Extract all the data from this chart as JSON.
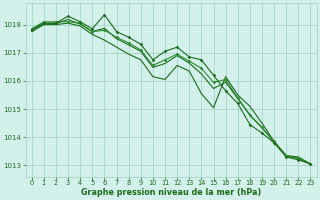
{
  "x": [
    0,
    1,
    2,
    3,
    4,
    5,
    6,
    7,
    8,
    9,
    10,
    11,
    12,
    13,
    14,
    15,
    16,
    17,
    18,
    19,
    20,
    21,
    22,
    23
  ],
  "line1": [
    1017.8,
    1018.05,
    1018.05,
    1018.3,
    1018.1,
    1017.85,
    1018.35,
    1017.75,
    1017.55,
    1017.3,
    1016.75,
    1017.05,
    1017.2,
    1016.85,
    1016.75,
    1016.2,
    1015.65,
    1015.2,
    1014.45,
    1014.15,
    1013.8,
    1013.3,
    1013.2,
    1013.05
  ],
  "line2": [
    1017.85,
    1018.1,
    1018.1,
    1018.1,
    1018.05,
    1017.75,
    1017.8,
    1017.55,
    1017.35,
    1017.1,
    1016.55,
    1016.75,
    1016.95,
    1016.7,
    1016.45,
    1015.95,
    1016.05,
    1015.4,
    1014.8,
    1014.35,
    1013.85,
    1013.35,
    1013.25,
    1013.05
  ],
  "line3": [
    1017.75,
    1018.0,
    1018.0,
    1018.05,
    1017.95,
    1017.65,
    1017.45,
    1017.2,
    1016.95,
    1016.75,
    1016.15,
    1016.05,
    1016.55,
    1016.35,
    1015.55,
    1015.05,
    1016.15,
    1015.5,
    1015.1,
    1014.5,
    1013.85,
    1013.35,
    1013.3,
    1013.05
  ],
  "line4": [
    1017.82,
    1018.04,
    1018.04,
    1018.18,
    1018.02,
    1017.75,
    1017.87,
    1017.5,
    1017.28,
    1017.05,
    1016.48,
    1016.62,
    1016.9,
    1016.63,
    1016.25,
    1015.73,
    1015.96,
    1015.37,
    1014.78,
    1014.33,
    1013.83,
    1013.33,
    1013.25,
    1013.05
  ],
  "line_color1": "#1a6b1a",
  "line_color2": "#2e8b2e",
  "line_color3": "#1a6b1a",
  "line_color4": "#1a6b1a",
  "bg_color": "#d4f0eb",
  "grid_color": "#9ecfc5",
  "text_color": "#1a6b1a",
  "xlabel": "Graphe pression niveau de la mer (hPa)",
  "ylim": [
    1012.6,
    1018.75
  ],
  "yticks": [
    1013,
    1014,
    1015,
    1016,
    1017,
    1018
  ],
  "xticks": [
    0,
    1,
    2,
    3,
    4,
    5,
    6,
    7,
    8,
    9,
    10,
    11,
    12,
    13,
    14,
    15,
    16,
    17,
    18,
    19,
    20,
    21,
    22,
    23
  ]
}
